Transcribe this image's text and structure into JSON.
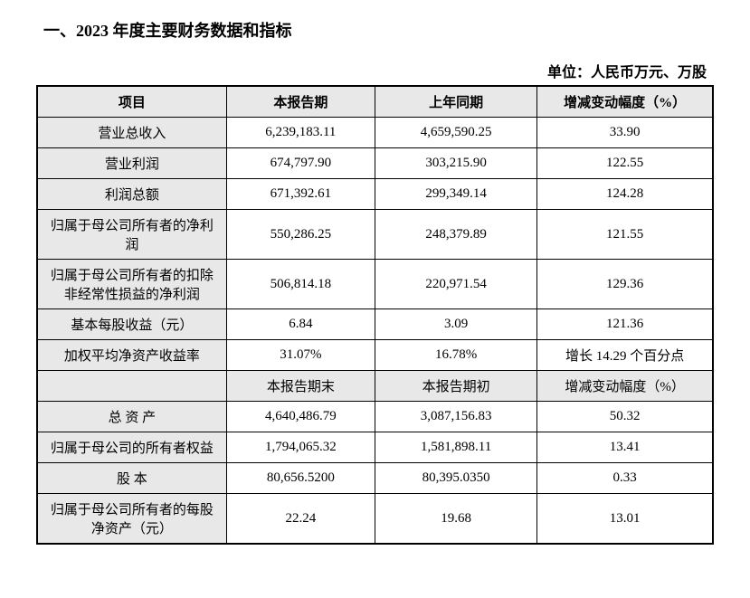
{
  "title": "一、2023 年度主要财务数据和指标",
  "unit": "单位：人民币万元、万股",
  "table": {
    "header": {
      "col1": "项目",
      "col2": "本报告期",
      "col3": "上年同期",
      "col4": "增减变动幅度（%）"
    },
    "section1_rows": [
      {
        "label": "营业总收入",
        "current": "6,239,183.11",
        "prior": "4,659,590.25",
        "change": "33.90"
      },
      {
        "label": "营业利润",
        "current": "674,797.90",
        "prior": "303,215.90",
        "change": "122.55"
      },
      {
        "label": "利润总额",
        "current": "671,392.61",
        "prior": "299,349.14",
        "change": "124.28"
      },
      {
        "label": "归属于母公司所有者的净利润",
        "current": "550,286.25",
        "prior": "248,379.89",
        "change": "121.55"
      },
      {
        "label": "归属于母公司所有者的扣除非经常性损益的净利润",
        "current": "506,814.18",
        "prior": "220,971.54",
        "change": "129.36"
      },
      {
        "label": "基本每股收益（元）",
        "current": "6.84",
        "prior": "3.09",
        "change": "121.36"
      },
      {
        "label": "加权平均净资产收益率",
        "current": "31.07%",
        "prior": "16.78%",
        "change": "增长 14.29 个百分点"
      }
    ],
    "subheader": {
      "col2": "本报告期末",
      "col3": "本报告期初",
      "col4": "增减变动幅度（%）"
    },
    "section2_rows": [
      {
        "label": "总 资 产",
        "current": "4,640,486.79",
        "prior": "3,087,156.83",
        "change": "50.32"
      },
      {
        "label": "归属于母公司的所有者权益",
        "current": "1,794,065.32",
        "prior": "1,581,898.11",
        "change": "13.41"
      },
      {
        "label": "股 本",
        "current": "80,656.5200",
        "prior": "80,395.0350",
        "change": "0.33"
      },
      {
        "label": "归属于母公司所有者的每股净资产（元）",
        "current": "22.24",
        "prior": "19.68",
        "change": "13.01"
      }
    ]
  },
  "styling": {
    "header_bg": "#e8e8e8",
    "label_bg": "#e8e8e8",
    "border_color": "#000000",
    "background": "#ffffff",
    "font_family": "SimSun",
    "title_fontsize": 18,
    "cell_fontsize": 15,
    "col_widths_pct": [
      28,
      22,
      24,
      26
    ]
  }
}
